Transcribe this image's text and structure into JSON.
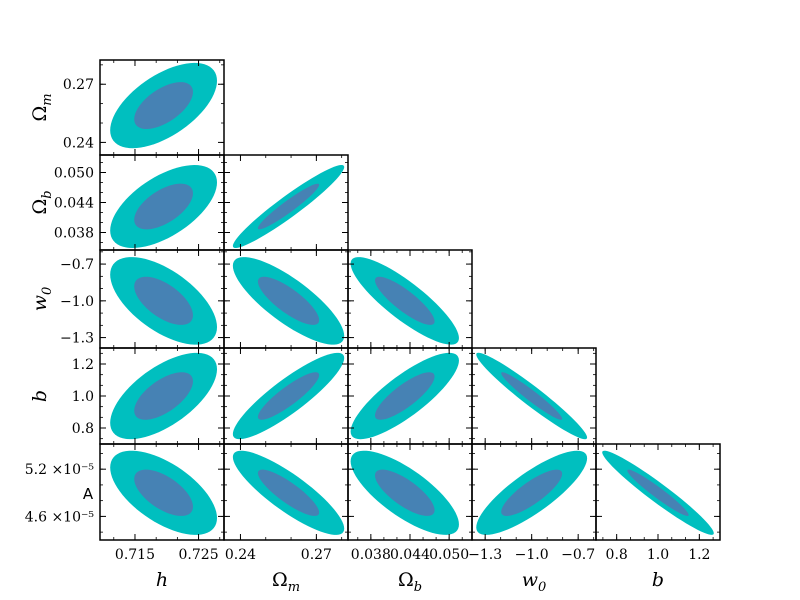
{
  "chart_data": {
    "type": "triangle-contour",
    "title": "",
    "colors": {
      "outer": "#00BFBF",
      "inner": "#4682B4"
    },
    "parameters": [
      {
        "name": "h",
        "label": "h",
        "ticks": [
          0.715,
          0.725
        ],
        "tick_labels": [
          "0.715",
          "0.725"
        ],
        "range": [
          0.7095,
          0.729
        ]
      },
      {
        "name": "Omega_m",
        "label": "Ωm",
        "label_main": "Ω",
        "label_sub": "m",
        "ticks": [
          0.24,
          0.27
        ],
        "tick_labels": [
          "0.24",
          "0.27"
        ],
        "range": [
          0.2335,
          0.2825
        ]
      },
      {
        "name": "Omega_b",
        "label": "Ωb",
        "label_main": "Ω",
        "label_sub": "b",
        "ticks": [
          0.038,
          0.044,
          0.05
        ],
        "tick_labels": [
          "0.038",
          "0.044",
          "0.050"
        ],
        "range": [
          0.0345,
          0.0535
        ]
      },
      {
        "name": "w0",
        "label": "w0",
        "label_main": "w",
        "label_sub": "0",
        "ticks": [
          -1.3,
          -1.0,
          -0.7
        ],
        "tick_labels": [
          "−1.3",
          "−1.0",
          "−0.7"
        ],
        "range": [
          -1.385,
          -0.585
        ]
      },
      {
        "name": "b",
        "label": "b",
        "ticks": [
          0.8,
          1.0,
          1.2
        ],
        "tick_labels": [
          "0.8",
          "1.0",
          "1.2"
        ],
        "range": [
          0.7,
          1.3
        ]
      },
      {
        "name": "A",
        "label": "A",
        "ticks": [
          4.6e-05,
          5.2e-05
        ],
        "tick_labels": [
          "4.6",
          "5.2"
        ],
        "tick_exponent": "×10⁻⁵",
        "range": [
          4.3e-05,
          5.52e-05
        ]
      }
    ],
    "contours": [
      {
        "x": "h",
        "y": "Omega_m",
        "center": [
          0.7195,
          0.259
        ],
        "outer_extent_x": [
          0.7113,
          0.7281
        ],
        "outer_extent_y": [
          0.2355,
          0.2795
        ],
        "rho": 0.58
      },
      {
        "x": "h",
        "y": "Omega_b",
        "center": [
          0.7195,
          0.0432
        ],
        "outer_extent_x": [
          0.7113,
          0.7281
        ],
        "outer_extent_y": [
          0.0361,
          0.0527
        ],
        "rho": 0.58
      },
      {
        "x": "Omega_m",
        "y": "Omega_b",
        "center": [
          0.259,
          0.0432
        ],
        "outer_extent_x": [
          0.2355,
          0.2795
        ],
        "outer_extent_y": [
          0.0361,
          0.0527
        ],
        "rho": 0.95
      },
      {
        "x": "h",
        "y": "w0",
        "center": [
          0.7195,
          -1.0
        ],
        "outer_extent_x": [
          0.7113,
          0.7281
        ],
        "outer_extent_y": [
          -1.345,
          -0.63
        ],
        "rho": -0.6
      },
      {
        "x": "Omega_m",
        "y": "w0",
        "center": [
          0.259,
          -1.0
        ],
        "outer_extent_x": [
          0.2355,
          0.2795
        ],
        "outer_extent_y": [
          -1.345,
          -0.63
        ],
        "rho": -0.8
      },
      {
        "x": "Omega_b",
        "y": "w0",
        "center": [
          0.0432,
          -1.0
        ],
        "outer_extent_x": [
          0.0361,
          0.0527
        ],
        "outer_extent_y": [
          -1.345,
          -0.63
        ],
        "rho": -0.85
      },
      {
        "x": "h",
        "y": "b",
        "center": [
          0.7195,
          1.0
        ],
        "outer_extent_x": [
          0.7113,
          0.7281
        ],
        "outer_extent_y": [
          0.73,
          1.27
        ],
        "rho": 0.62
      },
      {
        "x": "Omega_m",
        "y": "b",
        "center": [
          0.259,
          1.0
        ],
        "outer_extent_x": [
          0.2355,
          0.2795
        ],
        "outer_extent_y": [
          0.73,
          1.27
        ],
        "rho": 0.88
      },
      {
        "x": "Omega_b",
        "y": "b",
        "center": [
          0.0432,
          1.0
        ],
        "outer_extent_x": [
          0.0361,
          0.0527
        ],
        "outer_extent_y": [
          0.73,
          1.27
        ],
        "rho": 0.82
      },
      {
        "x": "w0",
        "y": "b",
        "center": [
          -1.0,
          1.0
        ],
        "outer_extent_x": [
          -1.345,
          -0.63
        ],
        "outer_extent_y": [
          0.73,
          1.27
        ],
        "rho": -0.96
      },
      {
        "x": "h",
        "y": "A",
        "center": [
          0.7195,
          4.9e-05
        ],
        "outer_extent_x": [
          0.7113,
          0.7281
        ],
        "outer_extent_y": [
          4.38e-05,
          5.45e-05
        ],
        "rho": -0.6
      },
      {
        "x": "Omega_m",
        "y": "A",
        "center": [
          0.259,
          4.9e-05
        ],
        "outer_extent_x": [
          0.2355,
          0.2795
        ],
        "outer_extent_y": [
          4.38e-05,
          5.45e-05
        ],
        "rho": -0.85
      },
      {
        "x": "Omega_b",
        "y": "A",
        "center": [
          0.0432,
          4.9e-05
        ],
        "outer_extent_x": [
          0.0361,
          0.0527
        ],
        "outer_extent_y": [
          4.38e-05,
          5.45e-05
        ],
        "rho": -0.75
      },
      {
        "x": "w0",
        "y": "A",
        "center": [
          -1.0,
          4.9e-05
        ],
        "outer_extent_x": [
          -1.345,
          -0.63
        ],
        "outer_extent_y": [
          4.38e-05,
          5.45e-05
        ],
        "rho": 0.82
      },
      {
        "x": "b",
        "y": "A",
        "center": [
          1.0,
          4.9e-05
        ],
        "outer_extent_x": [
          0.73,
          1.27
        ],
        "outer_extent_y": [
          4.38e-05,
          5.45e-05
        ],
        "rho": -0.96
      }
    ],
    "inner_scale": 0.55,
    "legend": "none",
    "grid": false
  }
}
